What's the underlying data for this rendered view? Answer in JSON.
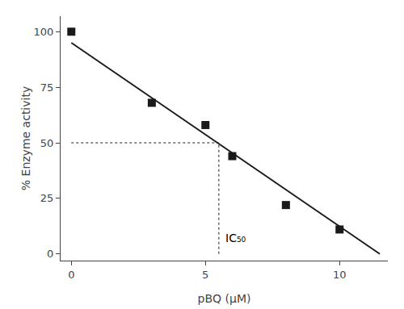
{
  "chart_data": {
    "type": "scatter",
    "xlabel": "pBQ (μM)",
    "ylabel": "% Enzyme activity",
    "xlim": [
      -0.4,
      11.8
    ],
    "ylim": [
      -3,
      107
    ],
    "xticks": [
      0,
      5,
      10
    ],
    "yticks": [
      0,
      25,
      50,
      75,
      100
    ],
    "grid": false,
    "series": [
      {
        "type": "line",
        "x": [
          0,
          11.5
        ],
        "values": [
          95,
          0
        ],
        "color": "#1a1a1a",
        "line_style": "solid"
      },
      {
        "type": "scatter",
        "x": [
          0,
          3,
          5,
          6,
          8,
          10
        ],
        "values": [
          100,
          68,
          58,
          44,
          22,
          11
        ],
        "color": "#1a1a1a",
        "marker": "square"
      }
    ],
    "ic50": {
      "x": 5.5,
      "y": 50,
      "x0": 0,
      "y0": 0,
      "label": "IC₅₀",
      "color": "#1a1a1a",
      "line_style": "dotted"
    }
  }
}
